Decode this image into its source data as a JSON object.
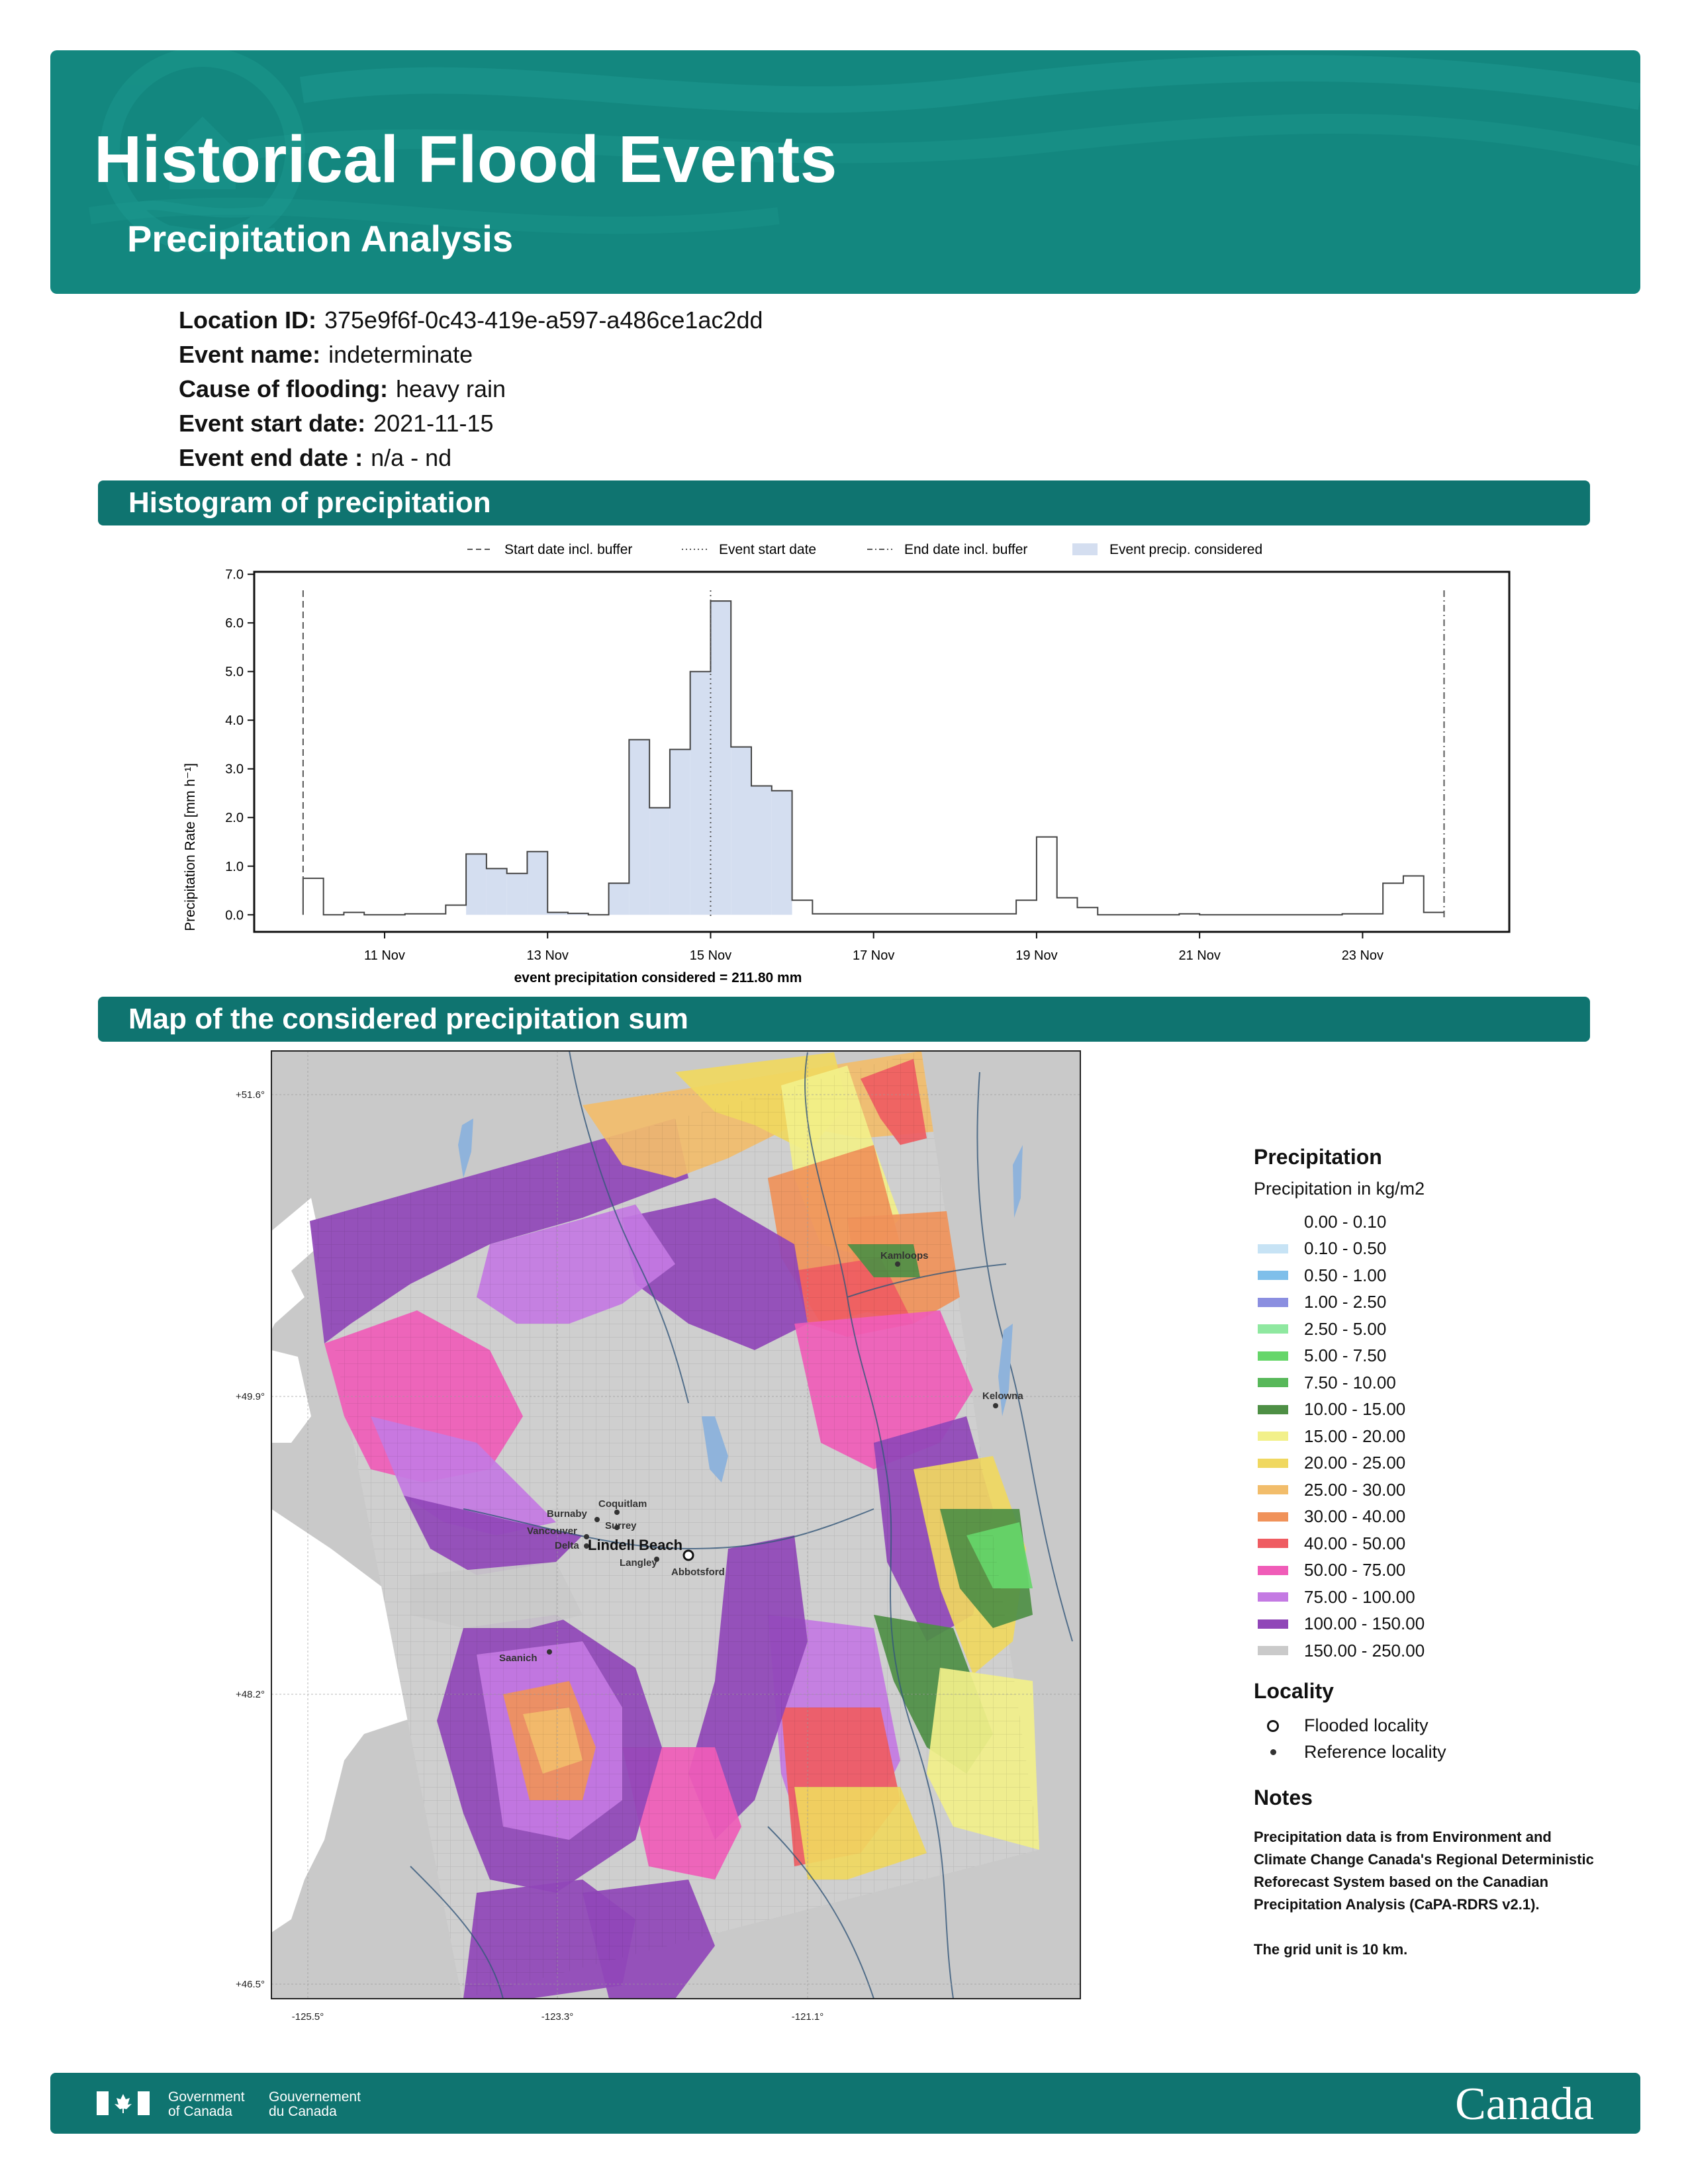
{
  "header": {
    "title": "Historical Flood Events",
    "subtitle": "Precipitation Analysis"
  },
  "info": [
    {
      "label": "Location ID:",
      "value": "375e9f6f-0c43-419e-a597-a486ce1ac2dd"
    },
    {
      "label": "Event name:",
      "value": "indeterminate"
    },
    {
      "label": "Cause of flooding:",
      "value": "heavy rain"
    },
    {
      "label": "Event start date:",
      "value": "2021-11-15"
    },
    {
      "label": "Event end date :",
      "value": "n/a - nd"
    }
  ],
  "sections": {
    "histogram": "Histogram of precipitation",
    "map": "Map of the considered precipitation sum"
  },
  "chart_data": {
    "type": "bar",
    "style": "step histogram",
    "title": "",
    "xlabel": "event precipitation considered = 211.80 mm",
    "ylabel": "Precipitation Rate [mm h⁻¹]",
    "ylim": [
      0,
      7
    ],
    "yticks": [
      "0.0",
      "1.0",
      "2.0",
      "3.0",
      "4.0",
      "5.0",
      "6.0",
      "7.0"
    ],
    "xticks": [
      {
        "label": "11 Nov",
        "day": 11
      },
      {
        "label": "13 Nov",
        "day": 13
      },
      {
        "label": "15 Nov",
        "day": 15
      },
      {
        "label": "17 Nov",
        "day": 17
      },
      {
        "label": "19 Nov",
        "day": 19
      },
      {
        "label": "21 Nov",
        "day": 21
      },
      {
        "label": "23 Nov",
        "day": 23
      }
    ],
    "legend": [
      {
        "label": "Start date incl. buffer",
        "style": "dashed"
      },
      {
        "label": "Event start date",
        "style": "dotted"
      },
      {
        "label": "End date incl. buffer",
        "style": "dashdot"
      },
      {
        "label": "Event precip. considered",
        "style": "fill"
      }
    ],
    "legend_position": "top",
    "start_buffer_day": 10,
    "event_start_day": 15,
    "end_buffer_day": 24,
    "considered_range_days": [
      12,
      16
    ],
    "bar_width_days": 0.25,
    "series": [
      {
        "start_days": [
          10,
          10.25,
          10.5,
          10.75,
          11,
          11.25,
          11.5,
          11.75,
          12,
          12.25,
          12.5,
          12.75,
          13,
          13.25,
          13.5,
          13.75,
          14,
          14.25,
          14.5,
          14.75,
          15,
          15.25,
          15.5,
          15.75,
          16,
          16.25,
          16.5,
          16.75,
          17,
          17.25,
          17.5,
          17.75,
          18,
          18.25,
          18.5,
          18.75,
          19,
          19.25,
          19.5,
          19.75,
          20,
          20.25,
          20.5,
          20.75,
          21,
          21.25,
          21.5,
          21.75,
          22,
          22.25,
          22.5,
          22.75,
          23,
          23.25,
          23.5,
          23.75
        ],
        "values": [
          0.75,
          0.0,
          0.05,
          0.0,
          0.0,
          0.02,
          0.02,
          0.2,
          1.25,
          0.95,
          0.85,
          1.3,
          0.05,
          0.03,
          0.0,
          0.65,
          3.6,
          2.2,
          3.4,
          5.0,
          6.45,
          3.45,
          2.65,
          2.55,
          0.3,
          0.02,
          0.02,
          0.02,
          0.02,
          0.02,
          0.02,
          0.02,
          0.02,
          0.02,
          0.02,
          0.3,
          1.6,
          0.35,
          0.15,
          0.0,
          0.0,
          0.0,
          0.0,
          0.02,
          0.0,
          0.0,
          0.0,
          0.0,
          0.0,
          0.0,
          0.0,
          0.02,
          0.02,
          0.65,
          0.8,
          0.05
        ]
      }
    ]
  },
  "map": {
    "lat_labels": [
      "+51.6°",
      "+49.9°",
      "+48.2°",
      "+46.5°"
    ],
    "lon_labels": [
      "-125.5°",
      "-123.3°",
      "-121.1°"
    ],
    "places": {
      "kamloops": "Kamloops",
      "kelowna": "Kelowna",
      "coquitlam": "Coquitlam",
      "burnaby": "Burnaby",
      "surrey": "Surrey",
      "vancouver": "Vancouver",
      "delta": "Delta",
      "flooded": "Lindell Beach",
      "langley": "Langley",
      "abbotsford": "Abbotsford",
      "saanich": "Saanich"
    }
  },
  "legend": {
    "title": "Precipitation",
    "subtitle": "Precipitation in kg/m2",
    "classes": [
      {
        "label": "0.00 - 0.10",
        "color": "#ffffff"
      },
      {
        "label": "0.10 - 0.50",
        "color": "#c7e3f5"
      },
      {
        "label": "0.50 - 1.00",
        "color": "#7fbfea"
      },
      {
        "label": "1.00 - 2.50",
        "color": "#8b8fe0"
      },
      {
        "label": "2.50 - 5.00",
        "color": "#8fe8a0"
      },
      {
        "label": "5.00 - 7.50",
        "color": "#66d66a"
      },
      {
        "label": "7.50 - 10.00",
        "color": "#58b85a"
      },
      {
        "label": "10.00 - 15.00",
        "color": "#4e8f45"
      },
      {
        "label": "15.00 - 20.00",
        "color": "#f2f08a"
      },
      {
        "label": "20.00 - 25.00",
        "color": "#f0d860"
      },
      {
        "label": "25.00 - 30.00",
        "color": "#f2bd6b"
      },
      {
        "label": "30.00 - 40.00",
        "color": "#f0925a"
      },
      {
        "label": "40.00 - 50.00",
        "color": "#ef5c62"
      },
      {
        "label": "50.00 - 75.00",
        "color": "#f05cb8"
      },
      {
        "label": "75.00 - 100.00",
        "color": "#c47ae3"
      },
      {
        "label": "100.00 - 150.00",
        "color": "#9046b8"
      },
      {
        "label": "150.00 - 250.00",
        "color": "#cacaca"
      }
    ],
    "locality_title": "Locality",
    "flooded_label": "Flooded locality",
    "reference_label": "Reference locality",
    "notes_title": "Notes",
    "notes_text": "Precipitation data is from Environment and Climate Change Canada's Regional Deterministic Reforecast System based on the Canadian Precipitation Analysis (CaPA-RDRS v2.1).",
    "grid_note": "The grid unit is 10 km."
  },
  "footer": {
    "gov_en": "Government\nof Canada",
    "gov_fr": "Gouvernement\ndu Canada",
    "wordmark": "Canada"
  },
  "colors": {
    "brand_teal": "#13877f",
    "bar_teal": "#0f7470",
    "hist_fill": "#d4def0"
  }
}
